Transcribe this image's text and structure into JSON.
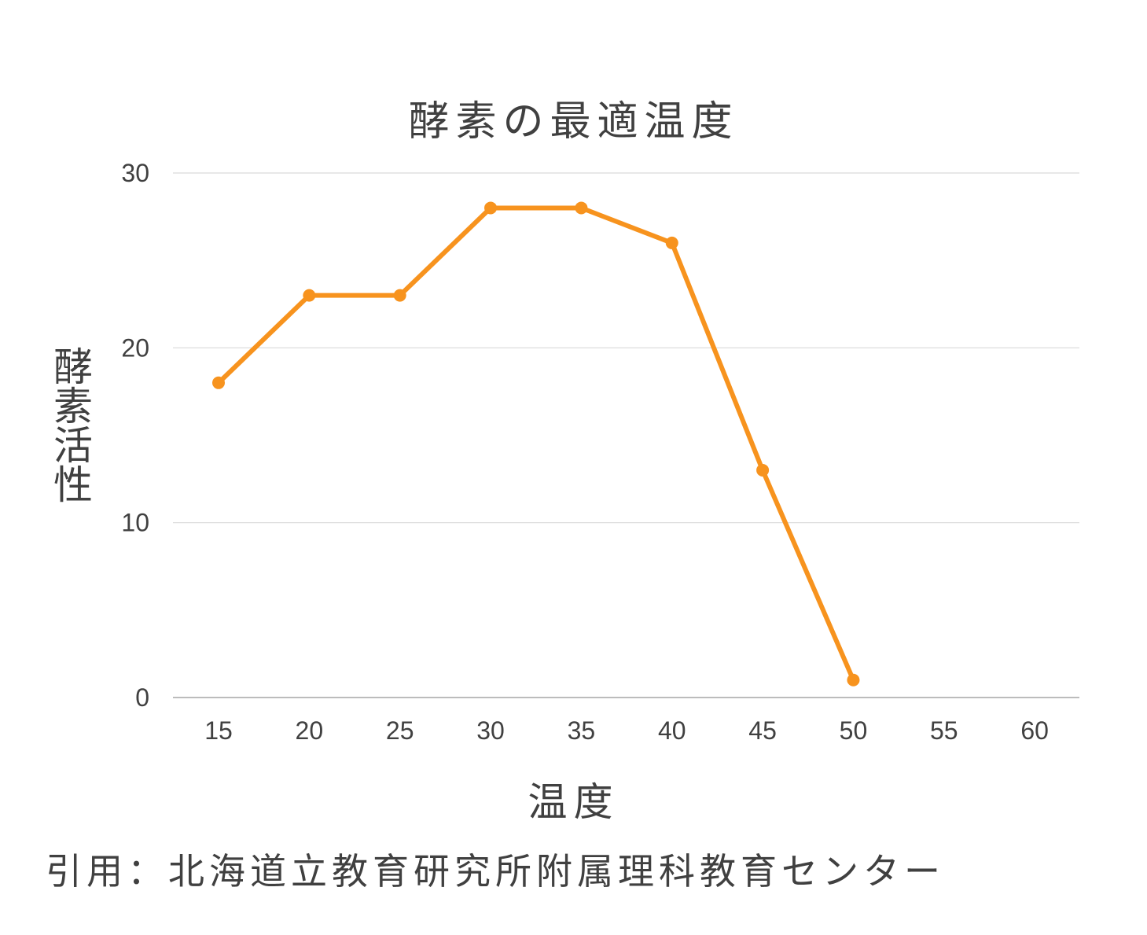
{
  "chart_data": {
    "type": "line",
    "title": "酵素の最適温度",
    "xlabel": "温度",
    "ylabel": "酵素活性",
    "x": [
      15,
      20,
      25,
      30,
      35,
      40,
      45,
      50
    ],
    "x_ticks": [
      "15",
      "20",
      "25",
      "30",
      "35",
      "40",
      "45",
      "50",
      "55",
      "60"
    ],
    "y_ticks": [
      "0",
      "10",
      "20",
      "30"
    ],
    "ylim": [
      0,
      30
    ],
    "grid": true,
    "legend": "none",
    "series": [
      {
        "values": [
          18,
          23,
          23,
          28,
          28,
          26,
          13,
          1
        ],
        "color": "#F7931E"
      }
    ]
  },
  "footer": {
    "citation": "引用：北海道立教育研究所附属理科教育センター"
  },
  "colors": {
    "line": "#F7931E",
    "gridline": "#D9D9D9",
    "axis": "#A6A6A6",
    "text": "#404040"
  }
}
